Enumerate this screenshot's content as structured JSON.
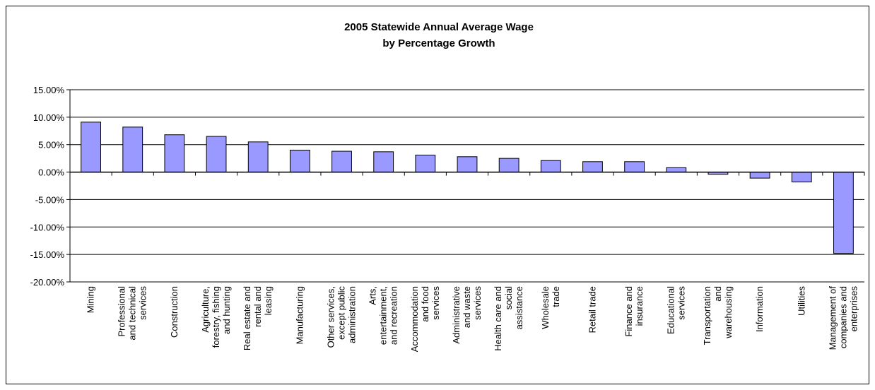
{
  "chart_data": {
    "type": "bar",
    "title": [
      "2005 Statewide Annual Average Wage",
      "by Percentage Growth"
    ],
    "xlabel": "",
    "ylabel": "",
    "ylim": [
      -0.2,
      0.15
    ],
    "ytick_values": [
      0.15,
      0.1,
      0.05,
      0.0,
      -0.05,
      -0.1,
      -0.15,
      -0.2
    ],
    "ytick_labels": [
      "15.00%",
      "10.00%",
      "5.00%",
      "0.00%",
      "-5.00%",
      "-10.00%",
      "-15.00%",
      "-20.00%"
    ],
    "grid": "horizontal",
    "legend": "none",
    "bar_color": "#9999ff",
    "categories": [
      [
        "Mining"
      ],
      [
        "Professional",
        "and technical",
        "services"
      ],
      [
        "Construction"
      ],
      [
        "Agriculture,",
        "forestry, fishing",
        "and hunting"
      ],
      [
        "Real estate and",
        "rental and",
        "leasing"
      ],
      [
        "Manufacturing"
      ],
      [
        "Other services,",
        "except public",
        "administration"
      ],
      [
        "Arts,",
        "entertainment,",
        "and recreation"
      ],
      [
        "Accommodation",
        "and food",
        "services"
      ],
      [
        "Administrative",
        "and waste",
        "services"
      ],
      [
        "Health care and",
        "social",
        "assistance"
      ],
      [
        "Wholesale",
        "trade"
      ],
      [
        "Retail trade"
      ],
      [
        "Finance and",
        "insurance"
      ],
      [
        "Educational",
        "services"
      ],
      [
        "Transportation",
        "and",
        "warehousing"
      ],
      [
        "Information"
      ],
      [
        "Utilities"
      ],
      [
        "Management of",
        "companies and",
        "enterprises"
      ]
    ],
    "values": [
      0.091,
      0.082,
      0.068,
      0.065,
      0.055,
      0.04,
      0.038,
      0.037,
      0.031,
      0.028,
      0.025,
      0.021,
      0.019,
      0.019,
      0.008,
      -0.004,
      -0.011,
      -0.018,
      -0.148
    ]
  }
}
